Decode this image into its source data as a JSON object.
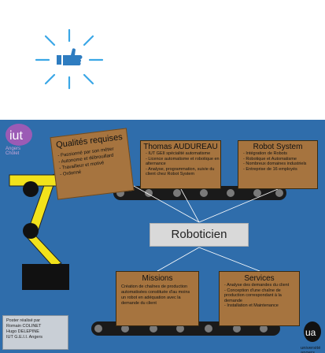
{
  "poster": {
    "iut_logo_text": "iut",
    "iut_subtitle_line1": "Angers",
    "iut_subtitle_line2": "Cholet",
    "qualites": {
      "title": "Qualités requises",
      "items": [
        "Passionné par son métier",
        "Autonome et débrouillard",
        "Travailleur et motivé",
        "Ordonné"
      ]
    },
    "thomas": {
      "title": "Thomas AUDUREAU",
      "items": [
        "IUT GEII spécialité automatisme",
        "Licence automatisme et robotique en alternance",
        "Analyse, programmation, suivie du client chez Robot System"
      ]
    },
    "robot_system": {
      "title": "Robot System",
      "items": [
        "Intégration de Robots",
        "Robotique et Automatisme",
        "Nombreux domaines industriels",
        "Entreprise de 16 employés"
      ]
    },
    "center_label": "Roboticien",
    "missions": {
      "title": "Missions",
      "text": "Création de chaînes de production automatisées constituée d'au moins un robot en adéquation avec la demande du client"
    },
    "services": {
      "title": "Services",
      "items": [
        "Analyse des demandes du client",
        "Conception d'une chaîne de production correspondant à la demande",
        "Installation et Maintenance"
      ]
    },
    "credits": [
      "Poster réalisé par",
      "Romain COLINET",
      "Hugo DELEPINE",
      "IUT G.E.I.I. Angers"
    ],
    "ua_logo_text": "ua",
    "ua_name": "université angers"
  },
  "colors": {
    "poster_bg": "#2f6dab",
    "box_brown": "#a6743f",
    "arm_yellow": "#f2e21b",
    "burst_blue": "#3aa7e6"
  }
}
